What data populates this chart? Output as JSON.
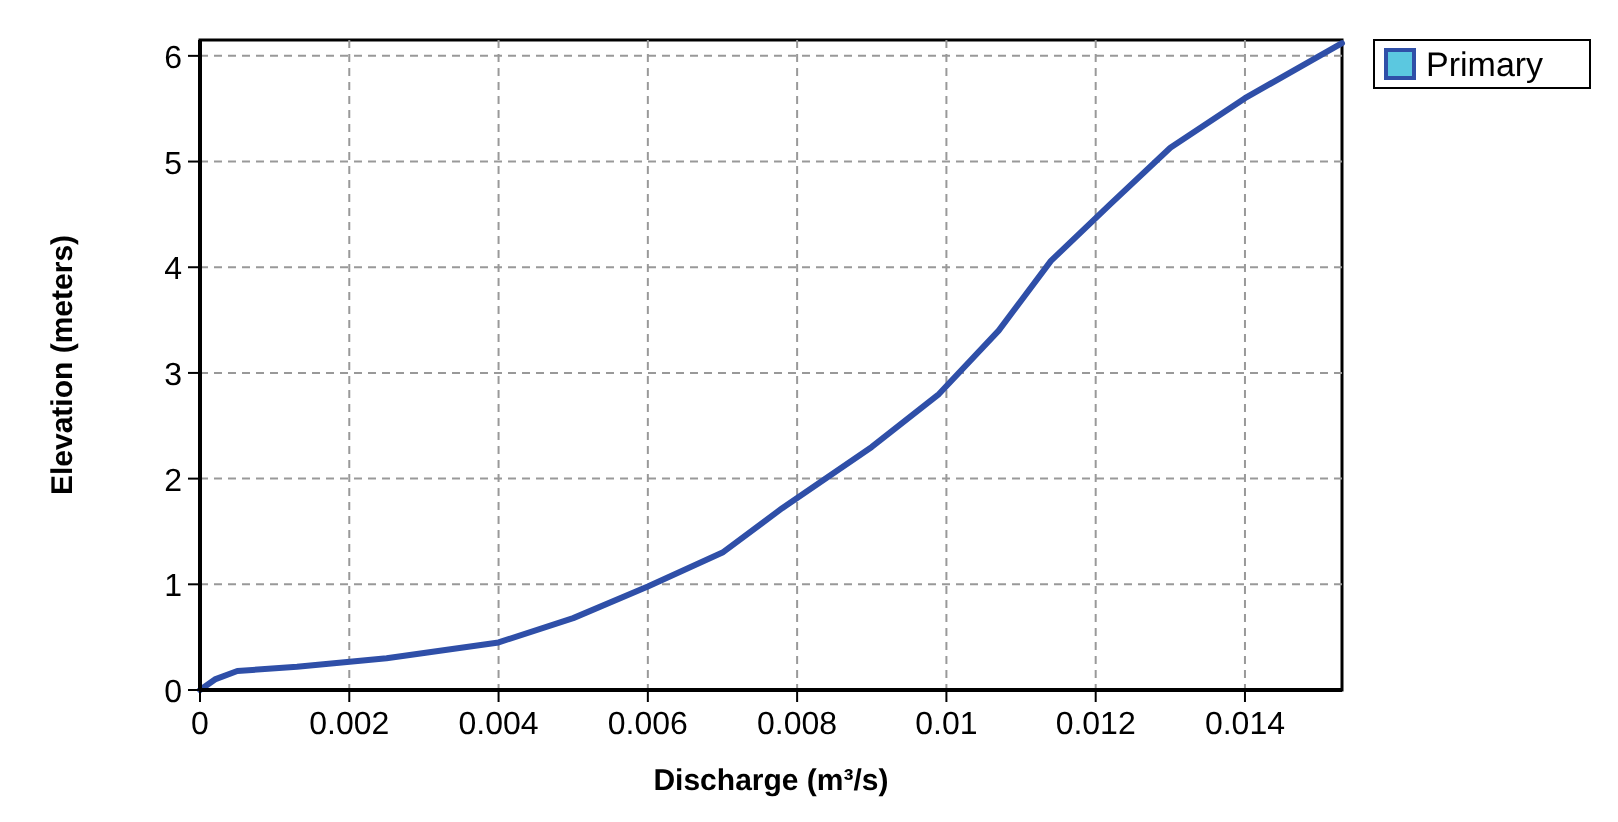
{
  "chart_data": {
    "type": "line",
    "xlabel": "Discharge  (m³/s)",
    "ylabel": "Elevation  (meters)",
    "x": [
      0,
      0.0002,
      0.0005,
      0.0013,
      0.0025,
      0.004,
      0.005,
      0.006,
      0.007,
      0.0078,
      0.009,
      0.0099,
      0.0107,
      0.0114,
      0.0122,
      0.013,
      0.014,
      0.0153
    ],
    "series": [
      {
        "name": "Primary",
        "color": "#2f4fa8",
        "values": [
          0,
          0.1,
          0.18,
          0.22,
          0.3,
          0.45,
          0.68,
          0.98,
          1.3,
          1.72,
          2.3,
          2.8,
          3.4,
          4.06,
          4.6,
          5.13,
          5.6,
          6.12
        ]
      }
    ],
    "xlim": [
      0,
      0.0153
    ],
    "ylim": [
      0,
      6.15
    ],
    "xticks": [
      0,
      0.002,
      0.004,
      0.006,
      0.008,
      0.01,
      0.012,
      0.014
    ],
    "yticks": [
      0,
      1,
      2,
      3,
      4,
      5,
      6
    ],
    "grid": true,
    "legend": "top right"
  }
}
